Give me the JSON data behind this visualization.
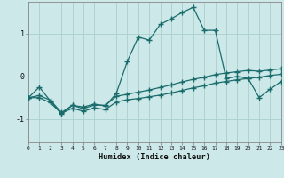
{
  "xlabel": "Humidex (Indice chaleur)",
  "bg_color": "#cce8e8",
  "grid_color": "#aacfcf",
  "line_color": "#1a6b6b",
  "xlim": [
    0,
    23
  ],
  "ylim": [
    -1.55,
    1.75
  ],
  "yticks": [
    -1,
    0,
    1
  ],
  "xticks": [
    0,
    1,
    2,
    3,
    4,
    5,
    6,
    7,
    8,
    9,
    10,
    11,
    12,
    13,
    14,
    15,
    16,
    17,
    18,
    19,
    20,
    21,
    22,
    23
  ],
  "line1_x": [
    0,
    1,
    2,
    3,
    4,
    5,
    6,
    7,
    8,
    9,
    10,
    11,
    12,
    13,
    14,
    15,
    16,
    17,
    18,
    19,
    20,
    21,
    22,
    23
  ],
  "line1_y": [
    -0.5,
    -0.25,
    -0.58,
    -0.88,
    -0.68,
    -0.72,
    -0.65,
    -0.7,
    -0.4,
    0.35,
    0.92,
    0.85,
    1.22,
    1.35,
    1.5,
    1.62,
    1.08,
    1.08,
    -0.05,
    0.0,
    -0.05,
    -0.5,
    -0.3,
    -0.12
  ],
  "line2_x": [
    0,
    1,
    2,
    3,
    4,
    5,
    6,
    7,
    8,
    9,
    10,
    11,
    12,
    13,
    14,
    15,
    16,
    17,
    18,
    19,
    20,
    21,
    22,
    23
  ],
  "line2_y": [
    -0.5,
    -0.45,
    -0.56,
    -0.85,
    -0.68,
    -0.76,
    -0.67,
    -0.68,
    -0.47,
    -0.42,
    -0.37,
    -0.32,
    -0.26,
    -0.2,
    -0.13,
    -0.07,
    -0.02,
    0.04,
    0.08,
    0.11,
    0.14,
    0.12,
    0.15,
    0.18
  ],
  "line3_x": [
    0,
    1,
    2,
    3,
    4,
    5,
    6,
    7,
    8,
    9,
    10,
    11,
    12,
    13,
    14,
    15,
    16,
    17,
    18,
    19,
    20,
    21,
    22,
    23
  ],
  "line3_y": [
    -0.5,
    -0.5,
    -0.62,
    -0.87,
    -0.75,
    -0.82,
    -0.74,
    -0.78,
    -0.6,
    -0.55,
    -0.52,
    -0.48,
    -0.44,
    -0.39,
    -0.33,
    -0.27,
    -0.22,
    -0.16,
    -0.12,
    -0.08,
    -0.05,
    -0.02,
    0.02,
    0.05
  ]
}
